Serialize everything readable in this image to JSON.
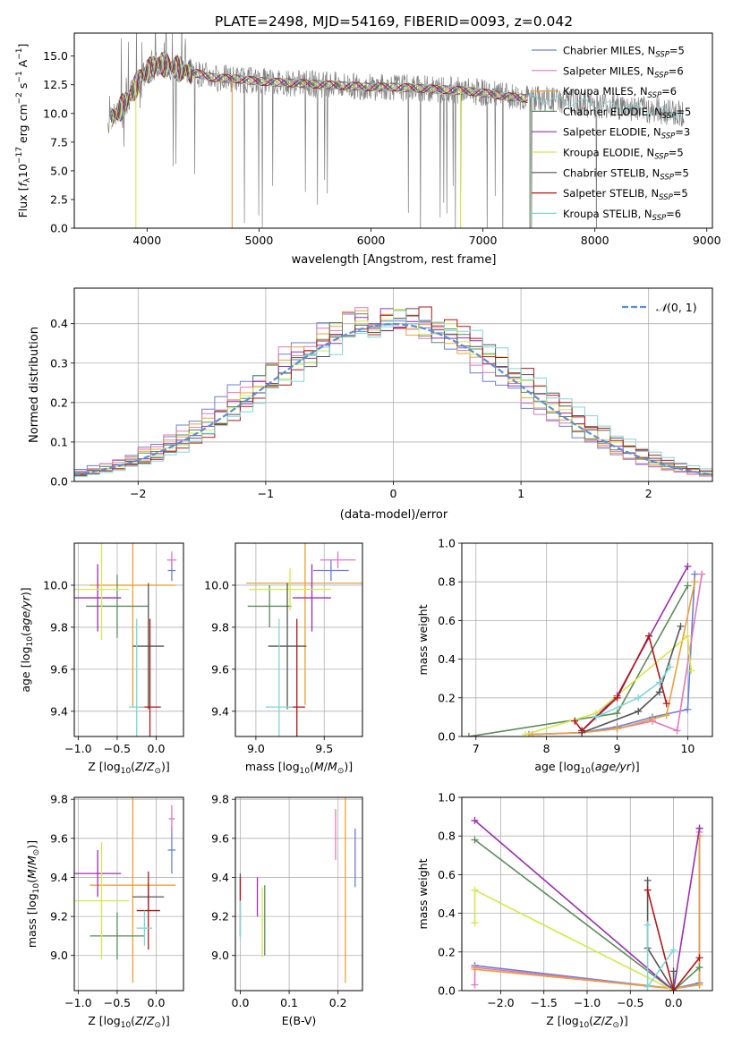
{
  "figure_title": "PLATE=2498, MJD=54169, FIBERID=0093, z=0.042",
  "colors": [
    "#6a7fd6",
    "#e377b8",
    "#e8a23a",
    "#5a8c5a",
    "#9a2fb0",
    "#d4e84a",
    "#555555",
    "#b01818",
    "#7fd6d6"
  ],
  "gauss_color": "#5b8ed6",
  "legend_labels": [
    {
      "pre": "Chabrier MILES, N",
      "sub": "SSP",
      "post": "=5"
    },
    {
      "pre": "Salpeter MILES, N",
      "sub": "SSP",
      "post": "=6"
    },
    {
      "pre": "Kroupa MILES, N",
      "sub": "SSP",
      "post": "=6"
    },
    {
      "pre": "Chabrier ELODIE, N",
      "sub": "SSP",
      "post": "=5"
    },
    {
      "pre": "Salpeter ELODIE, N",
      "sub": "SSP",
      "post": "=3"
    },
    {
      "pre": "Kroupa ELODIE, N",
      "sub": "SSP",
      "post": "=5"
    },
    {
      "pre": "Chabrier STELIB, N",
      "sub": "SSP",
      "post": "=5"
    },
    {
      "pre": "Salpeter STELIB, N",
      "sub": "SSP",
      "post": "=5"
    },
    {
      "pre": "Kroupa STELIB, N",
      "sub": "SSP",
      "post": "=6"
    }
  ],
  "chart_data": [
    {
      "id": "spectrum",
      "type": "line",
      "xlabel": "wavelength [Angstrom, rest frame]",
      "ylabel": "Flux [f_λ 10^-17 erg cm^-2 s^-1 A^-1]",
      "xlim": [
        3350,
        9050
      ],
      "ylim": [
        0,
        17
      ],
      "xticks": [
        4000,
        5000,
        6000,
        7000,
        8000,
        9000
      ],
      "yticks": [
        0.0,
        2.5,
        5.0,
        7.5,
        10.0,
        12.5,
        15.0
      ],
      "legend": "top-right",
      "data_x": [
        3650,
        3800,
        3950,
        4100,
        4250,
        4400,
        4600,
        4800,
        5000,
        5200,
        5400,
        5600,
        5800,
        6000,
        6200,
        6400,
        6600,
        6800,
        7000,
        7200,
        7400,
        7600,
        7800,
        8000,
        8200,
        8400,
        8600,
        8800
      ],
      "data_y": [
        9.2,
        10.8,
        13.2,
        14.4,
        14.0,
        13.6,
        13.1,
        13.0,
        12.8,
        12.7,
        12.6,
        12.5,
        12.4,
        12.3,
        12.3,
        12.2,
        12.1,
        12.0,
        11.8,
        11.5,
        11.3,
        11.2,
        11.0,
        10.8,
        10.6,
        10.4,
        10.2,
        10.0
      ],
      "model_xmax": [
        7400,
        7400,
        7400,
        7400,
        7400,
        7400,
        7400,
        7400,
        8800
      ]
    },
    {
      "id": "residuals",
      "type": "step",
      "xlabel": "(data-model)/error",
      "ylabel": "Normed distribution",
      "xlim": [
        -2.5,
        2.5
      ],
      "ylim": [
        0,
        0.49
      ],
      "xticks": [
        -2,
        -1,
        0,
        1,
        2
      ],
      "yticks": [
        0.0,
        0.1,
        0.2,
        0.3,
        0.4
      ],
      "legend_label": "N(0,1)",
      "legend": "top-right",
      "bin_width": 0.1
    },
    {
      "id": "age_vs_Z",
      "type": "errorbar",
      "xlabel": "Z [log10(Z/Z_sun)]",
      "ylabel": "age [log10(age/yr)]",
      "xlim": [
        -1.05,
        0.35
      ],
      "ylim": [
        9.28,
        10.2
      ],
      "xticks": [
        -1.0,
        -0.5,
        0.0
      ],
      "yticks": [
        9.4,
        9.6,
        9.8,
        10.0
      ],
      "points": [
        {
          "x": 0.2,
          "y": 10.07,
          "ex": 0.05,
          "ey": 0.05
        },
        {
          "x": 0.2,
          "y": 10.12,
          "ex": 0.06,
          "ey": 0.04
        },
        {
          "x": -0.3,
          "y": 10.0,
          "ex": 0.55,
          "ey": 0.58
        },
        {
          "x": -0.5,
          "y": 9.9,
          "ex": 0.4,
          "ey": 0.15
        },
        {
          "x": -0.75,
          "y": 9.94,
          "ex": 0.3,
          "ey": 0.16
        },
        {
          "x": -0.7,
          "y": 9.98,
          "ex": 0.35,
          "ey": 0.24
        },
        {
          "x": -0.1,
          "y": 9.71,
          "ex": 0.2,
          "ey": 0.3
        },
        {
          "x": -0.08,
          "y": 9.42,
          "ex": 0.14,
          "ey": 0.42
        },
        {
          "x": -0.25,
          "y": 9.42,
          "ex": 0.1,
          "ey": 0.42
        }
      ]
    },
    {
      "id": "age_vs_mass",
      "type": "errorbar",
      "xlabel": "mass [log10(M/M_sun)]",
      "ylabel": "",
      "xlim": [
        8.85,
        9.78
      ],
      "ylim": [
        9.28,
        10.2
      ],
      "xticks": [
        9.0,
        9.5
      ],
      "yticks": [
        9.4,
        9.6,
        9.8,
        10.0
      ],
      "points": [
        {
          "x": 9.55,
          "y": 10.07,
          "ex": 0.13,
          "ey": 0.05
        },
        {
          "x": 9.6,
          "y": 10.12,
          "ex": 0.13,
          "ey": 0.04
        },
        {
          "x": 9.36,
          "y": 10.01,
          "ex": 0.43,
          "ey": 0.58
        },
        {
          "x": 9.1,
          "y": 9.9,
          "ex": 0.16,
          "ey": 0.1
        },
        {
          "x": 9.41,
          "y": 9.94,
          "ex": 0.14,
          "ey": 0.16
        },
        {
          "x": 9.25,
          "y": 9.98,
          "ex": 0.3,
          "ey": 0.1
        },
        {
          "x": 9.23,
          "y": 9.71,
          "ex": 0.14,
          "ey": 0.3
        },
        {
          "x": 9.3,
          "y": 9.42,
          "ex": 0.06,
          "ey": 0.42
        },
        {
          "x": 9.17,
          "y": 9.42,
          "ex": 0.1,
          "ey": 0.42
        }
      ]
    },
    {
      "id": "massweight_vs_age",
      "type": "line",
      "xlabel": "age [log10(age/yr)]",
      "ylabel": "mass weight",
      "xlim": [
        6.8,
        10.35
      ],
      "ylim": [
        0,
        1
      ],
      "xticks": [
        7,
        8,
        9,
        10
      ],
      "yticks": [
        0.0,
        0.2,
        0.4,
        0.6,
        0.8,
        1.0
      ],
      "series": [
        {
          "x": [
            7.75,
            8.5,
            9.0,
            9.5,
            10.0,
            10.1
          ],
          "y": [
            0.01,
            0.02,
            0.05,
            0.1,
            0.14,
            0.84
          ]
        },
        {
          "x": [
            7.75,
            8.5,
            9.0,
            9.5,
            9.85,
            10.2
          ],
          "y": [
            0.01,
            0.02,
            0.04,
            0.08,
            0.03,
            0.84
          ]
        },
        {
          "x": [
            7.8,
            8.5,
            9.0,
            9.5,
            9.7,
            10.1
          ],
          "y": [
            0.01,
            0.02,
            0.04,
            0.09,
            0.11,
            0.8
          ]
        },
        {
          "x": [
            6.9,
            9.0,
            10.0
          ],
          "y": [
            0.0,
            0.12,
            0.78
          ]
        },
        {
          "x": [
            8.5,
            9.0,
            10.0
          ],
          "y": [
            0.03,
            0.21,
            0.88
          ]
        },
        {
          "x": [
            7.7,
            8.7,
            10.0,
            10.05
          ],
          "y": [
            0.01,
            0.12,
            0.52,
            0.34
          ]
        },
        {
          "x": [
            8.5,
            9.3,
            9.6,
            9.9
          ],
          "y": [
            0.02,
            0.13,
            0.23,
            0.57
          ]
        },
        {
          "x": [
            8.4,
            8.5,
            9.0,
            9.45,
            9.7
          ],
          "y": [
            0.08,
            0.03,
            0.2,
            0.52,
            0.17
          ]
        },
        {
          "x": [
            8.7,
            9.3,
            9.6,
            9.75
          ],
          "y": [
            0.1,
            0.2,
            0.28,
            0.36
          ]
        }
      ]
    },
    {
      "id": "mass_vs_Z",
      "type": "errorbar",
      "xlabel": "Z [log10(Z/Z_sun)]",
      "ylabel": "mass [log10(M/M_sun)]",
      "xlim": [
        -1.05,
        0.35
      ],
      "ylim": [
        8.82,
        9.81
      ],
      "xticks": [
        -1.0,
        -0.5,
        0.0
      ],
      "yticks": [
        9.0,
        9.2,
        9.4,
        9.6,
        9.8
      ],
      "points": [
        {
          "x": 0.2,
          "y": 9.54,
          "ex": 0.05,
          "ey": 0.12
        },
        {
          "x": 0.2,
          "y": 9.7,
          "ex": 0.04,
          "ey": 0.07
        },
        {
          "x": -0.3,
          "y": 9.36,
          "ex": 0.55,
          "ey": 0.5
        },
        {
          "x": -0.5,
          "y": 9.1,
          "ex": 0.35,
          "ey": 0.12
        },
        {
          "x": -0.75,
          "y": 9.42,
          "ex": 0.3,
          "ey": 0.12
        },
        {
          "x": -0.7,
          "y": 9.28,
          "ex": 0.35,
          "ey": 0.3
        },
        {
          "x": -0.1,
          "y": 9.3,
          "ex": 0.2,
          "ey": 0.07
        },
        {
          "x": -0.1,
          "y": 9.23,
          "ex": 0.15,
          "ey": 0.2
        },
        {
          "x": -0.15,
          "y": 9.14,
          "ex": 0.1,
          "ey": 0.09
        }
      ]
    },
    {
      "id": "mass_vs_ebv",
      "type": "errorbar",
      "xlabel": "E(B-V)",
      "ylabel": "",
      "xlim": [
        -0.01,
        0.25
      ],
      "ylim": [
        8.82,
        9.81
      ],
      "xticks": [
        0.0,
        0.1,
        0.2
      ],
      "yticks": [
        9.0,
        9.2,
        9.4,
        9.6,
        9.8
      ],
      "points": [
        {
          "x": 0.235,
          "y": 9.5,
          "ex": 0,
          "ey": 0.15
        },
        {
          "x": 0.195,
          "y": 9.62,
          "ex": 0,
          "ey": 0.13
        },
        {
          "x": 0.215,
          "y": 9.36,
          "ex": 0,
          "ey": 0.5
        },
        {
          "x": 0.05,
          "y": 9.18,
          "ex": 0,
          "ey": 0.18
        },
        {
          "x": 0.035,
          "y": 9.3,
          "ex": 0,
          "ey": 0.1
        },
        {
          "x": 0.045,
          "y": 9.17,
          "ex": 0,
          "ey": 0.18
        },
        {
          "x": 0.0,
          "y": 9.35,
          "ex": 0,
          "ey": 0.07
        },
        {
          "x": 0.0,
          "y": 9.25,
          "ex": 0,
          "ey": 0.15
        },
        {
          "x": 0.0,
          "y": 9.18,
          "ex": 0,
          "ey": 0.1
        }
      ]
    },
    {
      "id": "massweight_vs_Z",
      "type": "line",
      "xlabel": "Z [log10(Z/Z_sun)]",
      "ylabel": "mass weight",
      "xlim": [
        -2.45,
        0.45
      ],
      "ylim": [
        0,
        1
      ],
      "xticks": [
        -2.0,
        -1.5,
        -1.0,
        -0.5,
        0.0
      ],
      "yticks": [
        0.0,
        0.2,
        0.4,
        0.6,
        0.8,
        1.0
      ],
      "series": [
        {
          "x": [
            -2.3,
            0.0,
            0.3,
            0.3
          ],
          "y": [
            0.13,
            0.01,
            0.04,
            0.84
          ]
        },
        {
          "x": [
            -2.3,
            -2.3,
            0.0,
            0.3,
            0.3
          ],
          "y": [
            0.03,
            0.12,
            0.01,
            0.03,
            0.82
          ]
        },
        {
          "x": [
            -2.3,
            0.0,
            0.3,
            0.3
          ],
          "y": [
            0.11,
            0.01,
            0.03,
            0.8
          ]
        },
        {
          "x": [
            -2.3,
            0.0,
            0.3
          ],
          "y": [
            0.78,
            0.0,
            0.12
          ]
        },
        {
          "x": [
            -2.3,
            0.0,
            0.3
          ],
          "y": [
            0.88,
            0.0,
            0.84
          ]
        },
        {
          "x": [
            -2.3,
            -2.3,
            0.0
          ],
          "y": [
            0.35,
            0.52,
            0.0
          ]
        },
        {
          "x": [
            -0.3,
            -0.3,
            0.0,
            0.0
          ],
          "y": [
            0.57,
            0.22,
            0.0,
            0.1
          ]
        },
        {
          "x": [
            -0.3,
            0.0,
            0.3
          ],
          "y": [
            0.52,
            0.0,
            0.17
          ]
        },
        {
          "x": [
            -0.3,
            -0.3,
            0.0
          ],
          "y": [
            0.34,
            0.02,
            0.21
          ]
        }
      ]
    }
  ]
}
